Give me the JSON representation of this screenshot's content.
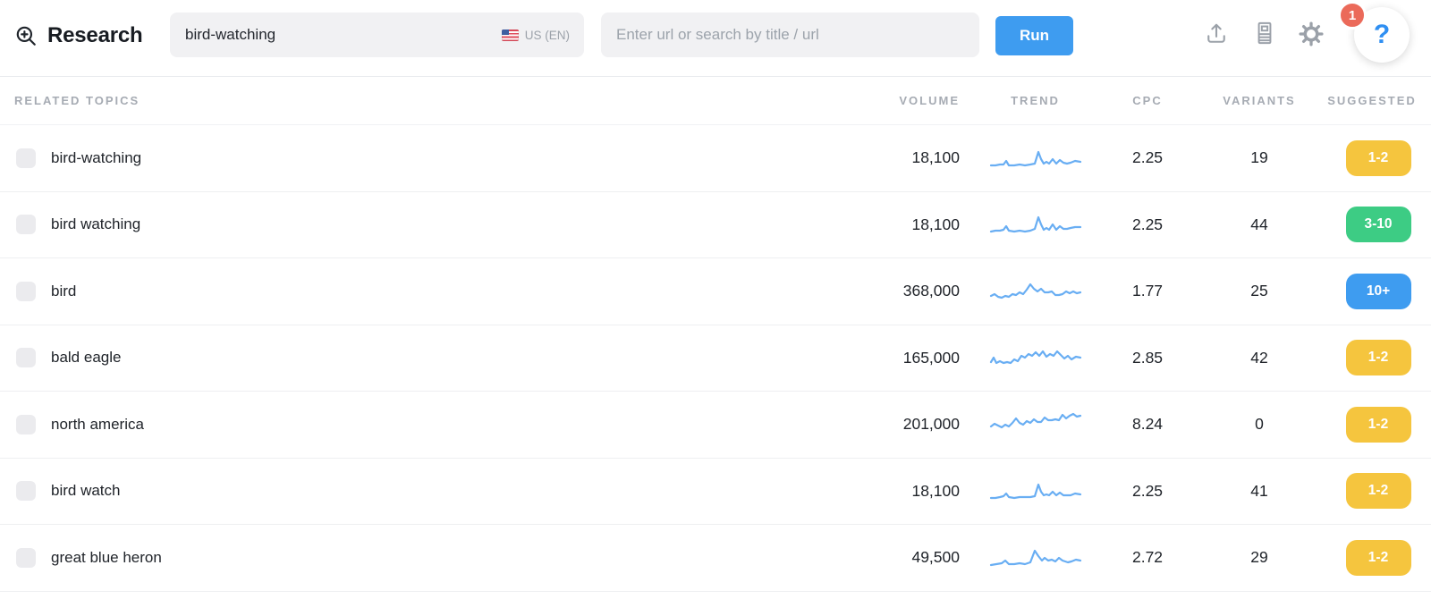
{
  "header": {
    "title": "Research",
    "keyword_input": {
      "value": "bird-watching",
      "country_label": "US (EN)"
    },
    "url_input": {
      "placeholder": "Enter url or search by title / url"
    },
    "run_label": "Run",
    "notification_count": "1",
    "help_label": "?"
  },
  "table": {
    "columns": [
      "RELATED TOPICS",
      "VOLUME",
      "TREND",
      "CPC",
      "VARIANTS",
      "SUGGESTED"
    ],
    "rows": [
      {
        "keyword": "bird-watching",
        "volume": "18,100",
        "cpc": "2.25",
        "variants": "19",
        "suggested": "1-2",
        "suggested_color": "yellow",
        "trend": [
          [
            2,
            23
          ],
          [
            7,
            23
          ],
          [
            12,
            22
          ],
          [
            16,
            22
          ],
          [
            19,
            18
          ],
          [
            22,
            23
          ],
          [
            28,
            23
          ],
          [
            34,
            22
          ],
          [
            40,
            23
          ],
          [
            46,
            22
          ],
          [
            51,
            21
          ],
          [
            55,
            8
          ],
          [
            58,
            16
          ],
          [
            61,
            21
          ],
          [
            64,
            19
          ],
          [
            67,
            21
          ],
          [
            71,
            16
          ],
          [
            75,
            21
          ],
          [
            79,
            17
          ],
          [
            83,
            20
          ],
          [
            87,
            21
          ],
          [
            91,
            20
          ],
          [
            96,
            18
          ],
          [
            102,
            19
          ]
        ]
      },
      {
        "keyword": "bird watching",
        "volume": "18,100",
        "cpc": "2.25",
        "variants": "44",
        "suggested": "3-10",
        "suggested_color": "green",
        "trend": [
          [
            2,
            23
          ],
          [
            7,
            22
          ],
          [
            12,
            22
          ],
          [
            16,
            21
          ],
          [
            19,
            17
          ],
          [
            22,
            22
          ],
          [
            28,
            23
          ],
          [
            34,
            22
          ],
          [
            40,
            23
          ],
          [
            46,
            22
          ],
          [
            51,
            20
          ],
          [
            55,
            7
          ],
          [
            58,
            15
          ],
          [
            61,
            21
          ],
          [
            64,
            19
          ],
          [
            67,
            21
          ],
          [
            71,
            15
          ],
          [
            75,
            21
          ],
          [
            79,
            17
          ],
          [
            83,
            20
          ],
          [
            87,
            20
          ],
          [
            91,
            19
          ],
          [
            96,
            18
          ],
          [
            102,
            18
          ]
        ]
      },
      {
        "keyword": "bird",
        "volume": "368,000",
        "cpc": "1.77",
        "variants": "25",
        "suggested": "10+",
        "suggested_color": "blue",
        "trend": [
          [
            2,
            20
          ],
          [
            6,
            18
          ],
          [
            10,
            21
          ],
          [
            14,
            22
          ],
          [
            18,
            20
          ],
          [
            22,
            21
          ],
          [
            26,
            18
          ],
          [
            30,
            19
          ],
          [
            34,
            16
          ],
          [
            38,
            18
          ],
          [
            42,
            13
          ],
          [
            46,
            7
          ],
          [
            50,
            12
          ],
          [
            54,
            15
          ],
          [
            58,
            12
          ],
          [
            62,
            16
          ],
          [
            66,
            16
          ],
          [
            70,
            15
          ],
          [
            74,
            19
          ],
          [
            78,
            19
          ],
          [
            82,
            18
          ],
          [
            86,
            15
          ],
          [
            90,
            17
          ],
          [
            94,
            15
          ],
          [
            98,
            17
          ],
          [
            102,
            16
          ]
        ]
      },
      {
        "keyword": "bald eagle",
        "volume": "165,000",
        "cpc": "2.85",
        "variants": "42",
        "suggested": "1-2",
        "suggested_color": "yellow",
        "trend": [
          [
            2,
            20
          ],
          [
            5,
            15
          ],
          [
            8,
            21
          ],
          [
            12,
            19
          ],
          [
            16,
            21
          ],
          [
            20,
            20
          ],
          [
            24,
            21
          ],
          [
            28,
            17
          ],
          [
            32,
            19
          ],
          [
            36,
            13
          ],
          [
            40,
            15
          ],
          [
            44,
            11
          ],
          [
            48,
            13
          ],
          [
            52,
            9
          ],
          [
            56,
            13
          ],
          [
            60,
            8
          ],
          [
            64,
            14
          ],
          [
            68,
            11
          ],
          [
            72,
            13
          ],
          [
            76,
            8
          ],
          [
            80,
            12
          ],
          [
            84,
            16
          ],
          [
            88,
            13
          ],
          [
            92,
            17
          ],
          [
            97,
            14
          ],
          [
            102,
            15
          ]
        ]
      },
      {
        "keyword": "north america",
        "volume": "201,000",
        "cpc": "8.24",
        "variants": "0",
        "suggested": "1-2",
        "suggested_color": "yellow",
        "trend": [
          [
            2,
            17
          ],
          [
            6,
            14
          ],
          [
            10,
            16
          ],
          [
            14,
            18
          ],
          [
            18,
            15
          ],
          [
            22,
            17
          ],
          [
            26,
            13
          ],
          [
            30,
            8
          ],
          [
            34,
            13
          ],
          [
            38,
            15
          ],
          [
            42,
            11
          ],
          [
            46,
            13
          ],
          [
            50,
            9
          ],
          [
            54,
            12
          ],
          [
            58,
            12
          ],
          [
            62,
            7
          ],
          [
            66,
            10
          ],
          [
            70,
            10
          ],
          [
            74,
            9
          ],
          [
            78,
            10
          ],
          [
            82,
            4
          ],
          [
            86,
            8
          ],
          [
            90,
            5
          ],
          [
            94,
            3
          ],
          [
            98,
            6
          ],
          [
            102,
            5
          ]
        ]
      },
      {
        "keyword": "bird watch",
        "volume": "18,100",
        "cpc": "2.25",
        "variants": "41",
        "suggested": "1-2",
        "suggested_color": "yellow",
        "trend": [
          [
            2,
            23
          ],
          [
            7,
            23
          ],
          [
            12,
            22
          ],
          [
            16,
            21
          ],
          [
            19,
            18
          ],
          [
            22,
            22
          ],
          [
            28,
            23
          ],
          [
            34,
            22
          ],
          [
            40,
            22
          ],
          [
            46,
            22
          ],
          [
            51,
            21
          ],
          [
            55,
            8
          ],
          [
            58,
            16
          ],
          [
            61,
            20
          ],
          [
            64,
            19
          ],
          [
            67,
            20
          ],
          [
            71,
            16
          ],
          [
            75,
            20
          ],
          [
            79,
            17
          ],
          [
            83,
            20
          ],
          [
            87,
            20
          ],
          [
            91,
            20
          ],
          [
            96,
            18
          ],
          [
            102,
            19
          ]
        ]
      },
      {
        "keyword": "great blue heron",
        "volume": "49,500",
        "cpc": "2.72",
        "variants": "29",
        "suggested": "1-2",
        "suggested_color": "yellow",
        "trend": [
          [
            2,
            23
          ],
          [
            8,
            22
          ],
          [
            14,
            21
          ],
          [
            18,
            18
          ],
          [
            22,
            22
          ],
          [
            28,
            22
          ],
          [
            34,
            21
          ],
          [
            40,
            22
          ],
          [
            46,
            20
          ],
          [
            51,
            7
          ],
          [
            55,
            13
          ],
          [
            59,
            18
          ],
          [
            62,
            15
          ],
          [
            66,
            18
          ],
          [
            70,
            17
          ],
          [
            74,
            19
          ],
          [
            78,
            15
          ],
          [
            82,
            18
          ],
          [
            88,
            20
          ],
          [
            92,
            19
          ],
          [
            97,
            17
          ],
          [
            102,
            18
          ]
        ]
      }
    ]
  },
  "colors": {
    "accent_blue": "#3E9CF0",
    "help_blue": "#2F8FF2",
    "badge_yellow": "#F5C53E",
    "badge_green": "#3DCC84",
    "badge_blue": "#3E9CF0",
    "sparkline_blue": "#69AEF3",
    "notification_red": "#EB6A5A"
  }
}
